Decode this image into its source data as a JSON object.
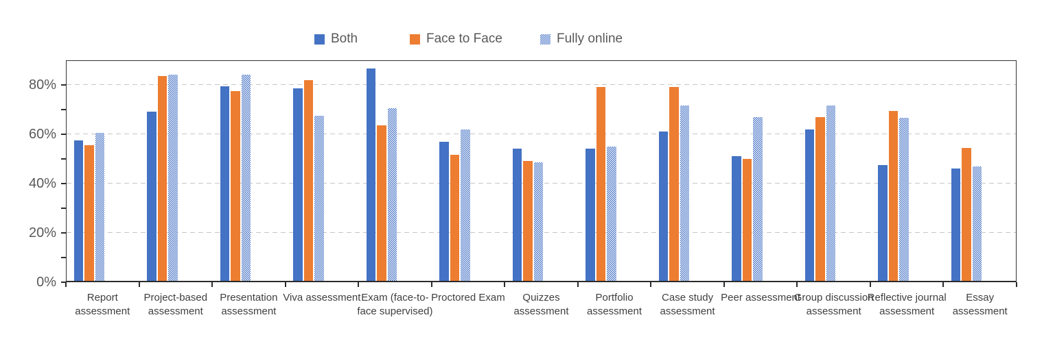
{
  "chart_data": {
    "type": "bar",
    "title": "",
    "xlabel": "",
    "ylabel": "",
    "legend": {
      "position": "top-center",
      "entries": [
        "Both",
        "Face to Face",
        "Fully online"
      ]
    },
    "categories": [
      "Report assessment",
      "Project-based assessment",
      "Presentation assessment",
      "Viva assessment",
      "Exam (face-to-face supervised)",
      "Proctored Exam",
      "Quizzes assessment",
      "Portfolio assessment",
      "Case study assessment",
      "Peer assessment",
      "Group discussion assessment",
      "Reflective journal assessment",
      "Essay assessment"
    ],
    "series": [
      {
        "name": "Both",
        "color": "#4472C4",
        "fill": "solid",
        "values": [
          57,
          68.5,
          79,
          78,
          86,
          56.5,
          53.5,
          53.5,
          60.5,
          50.5,
          61.5,
          47,
          45.5
        ]
      },
      {
        "name": "Face to Face",
        "color": "#ED7D31",
        "fill": "solid",
        "values": [
          55,
          83,
          77,
          81.5,
          63,
          51,
          48.5,
          78.5,
          78.5,
          49.5,
          66.5,
          69,
          54
        ]
      },
      {
        "name": "Fully online",
        "color": "#4472C4",
        "fill": "checkerboard-pattern",
        "values": [
          60,
          83.5,
          83.5,
          67,
          70,
          61.5,
          48,
          54.5,
          71,
          66.5,
          71,
          66,
          46.5
        ]
      }
    ],
    "y_axis": {
      "min": 0,
      "max": 90,
      "major_unit": 20,
      "minor_unit": 10,
      "tick_labels": [
        "0%",
        "20%",
        "40%",
        "60%",
        "80%"
      ],
      "format": "percent"
    },
    "grid": {
      "horizontal": true,
      "style": "dashed"
    }
  },
  "colors": {
    "bar_blue": "#4472C4",
    "bar_orange": "#ED7D31",
    "axis_line": "#2b2b2b",
    "gridline": "#c6c6c6",
    "y_tick_label": "#595959",
    "category_label": "#3f3f3f",
    "legend_text": "#595959"
  }
}
